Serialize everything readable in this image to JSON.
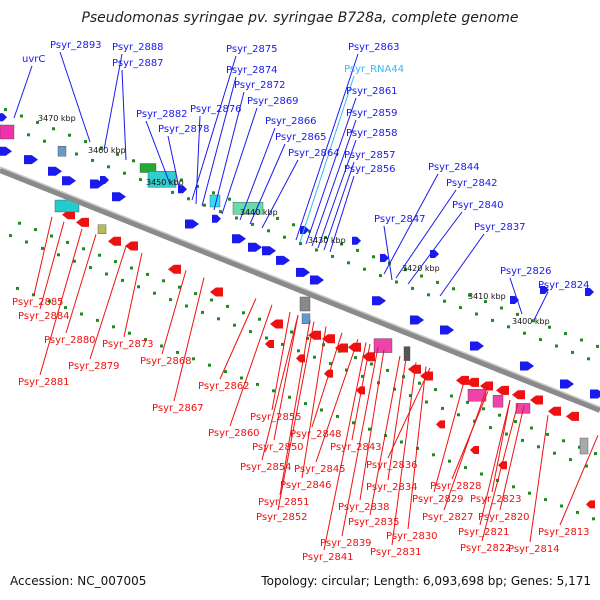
{
  "title": "Pseudomonas syringae pv. syringae B728a, complete genome",
  "footer": {
    "accession": "Accession: NC_007005",
    "summary": "Topology: circular; Length: 6,093,698 bp; Genes: 5,171"
  },
  "colors": {
    "forward": "#1a1aee",
    "reverse": "#ee1111",
    "rna": "#33bbee",
    "backbone": "#8a8a8a",
    "dots": "#228822"
  },
  "ticks": [
    "3470 kbp",
    "3460 kbp",
    "3450 kbp",
    "3440 kbp",
    "3430 kbp",
    "3420 kbp",
    "3410 kbp",
    "3400 kbp"
  ],
  "top_labels": [
    "uvrC",
    "Psyr_2893",
    "Psyr_2888",
    "Psyr_2887",
    "Psyr_2882",
    "Psyr_2878",
    "Psyr_2875",
    "Psyr_2874",
    "Psyr_2876",
    "Psyr_2872",
    "Psyr_2869",
    "Psyr_2866",
    "Psyr_2865",
    "Psyr_2864",
    "Psyr_2863",
    "Psyr_RNA44",
    "Psyr_2861",
    "Psyr_2859",
    "Psyr_2858",
    "Psyr_2857",
    "Psyr_2856",
    "Psyr_2844",
    "Psyr_2842",
    "Psyr_2840",
    "Psyr_2847",
    "Psyr_2837",
    "Psyr_2826",
    "Psyr_2824"
  ],
  "bottom_labels": [
    "Psyr_2885",
    "Psyr_2884",
    "Psyr_2880",
    "Psyr_2879",
    "Psyr_2881",
    "Psyr_2873",
    "Psyr_2868",
    "Psyr_2867",
    "Psyr_2862",
    "Psyr_2860",
    "Psyr_2855",
    "Psyr_2850",
    "Psyr_2848",
    "Psyr_2854",
    "Psyr_2845",
    "Psyr_2843",
    "Psyr_2846",
    "Psyr_2851",
    "Psyr_2852",
    "Psyr_2836",
    "Psyr_2834",
    "Psyr_2838",
    "Psyr_2835",
    "Psyr_2839",
    "Psyr_2841",
    "Psyr_2830",
    "Psyr_2831",
    "Psyr_2829",
    "Psyr_2828",
    "Psyr_2827",
    "Psyr_2823",
    "Psyr_2820",
    "Psyr_2821",
    "Psyr_2822",
    "Psyr_2813",
    "Psyr_2814"
  ]
}
